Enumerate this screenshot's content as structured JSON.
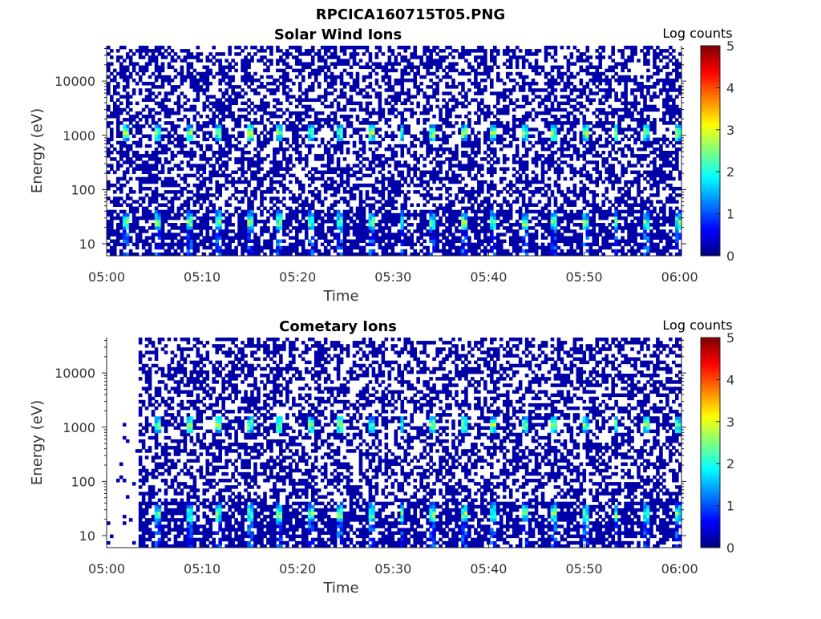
{
  "figure": {
    "title": "RPCICA160715T05.PNG"
  },
  "chart_data": [
    {
      "type": "heatmap",
      "title": "Solar Wind Ions",
      "xlabel": "Time",
      "ylabel": "Energy (eV)",
      "x_ticks": [
        "05:00",
        "05:10",
        "05:20",
        "05:30",
        "05:40",
        "05:50",
        "06:00"
      ],
      "x_range": [
        "05:00",
        "06:00"
      ],
      "y_scale": "log",
      "y_ticks": [
        "10",
        "100",
        "1000",
        "10000"
      ],
      "y_range": [
        6,
        45000
      ],
      "colorbar": {
        "label": "Log counts",
        "ticks": [
          "0",
          "1",
          "2",
          "3",
          "4",
          "5"
        ],
        "range": [
          0,
          5
        ],
        "colormap": "jet"
      },
      "features": {
        "peak_energies_eV": [
          1100,
          25
        ],
        "sweep_period_min": 3.2,
        "first_peak_min": 1.8,
        "background_level": 0.2,
        "max_level": 3.2,
        "data_start_min": 0
      }
    },
    {
      "type": "heatmap",
      "title": "Cometary Ions",
      "xlabel": "Time",
      "ylabel": "Energy (eV)",
      "x_ticks": [
        "05:00",
        "05:10",
        "05:20",
        "05:30",
        "05:40",
        "05:50",
        "06:00"
      ],
      "x_range": [
        "05:00",
        "06:00"
      ],
      "y_scale": "log",
      "y_ticks": [
        "10",
        "100",
        "1000",
        "10000"
      ],
      "y_range": [
        6,
        45000
      ],
      "colorbar": {
        "label": "Log counts",
        "ticks": [
          "0",
          "1",
          "2",
          "3",
          "4",
          "5"
        ],
        "range": [
          0,
          5
        ],
        "colormap": "jet"
      },
      "features": {
        "peak_energies_eV": [
          1100,
          25
        ],
        "sweep_period_min": 3.2,
        "first_peak_min": 1.8,
        "background_level": 0.2,
        "max_level": 3.2,
        "data_start_min": 3.2
      }
    }
  ]
}
